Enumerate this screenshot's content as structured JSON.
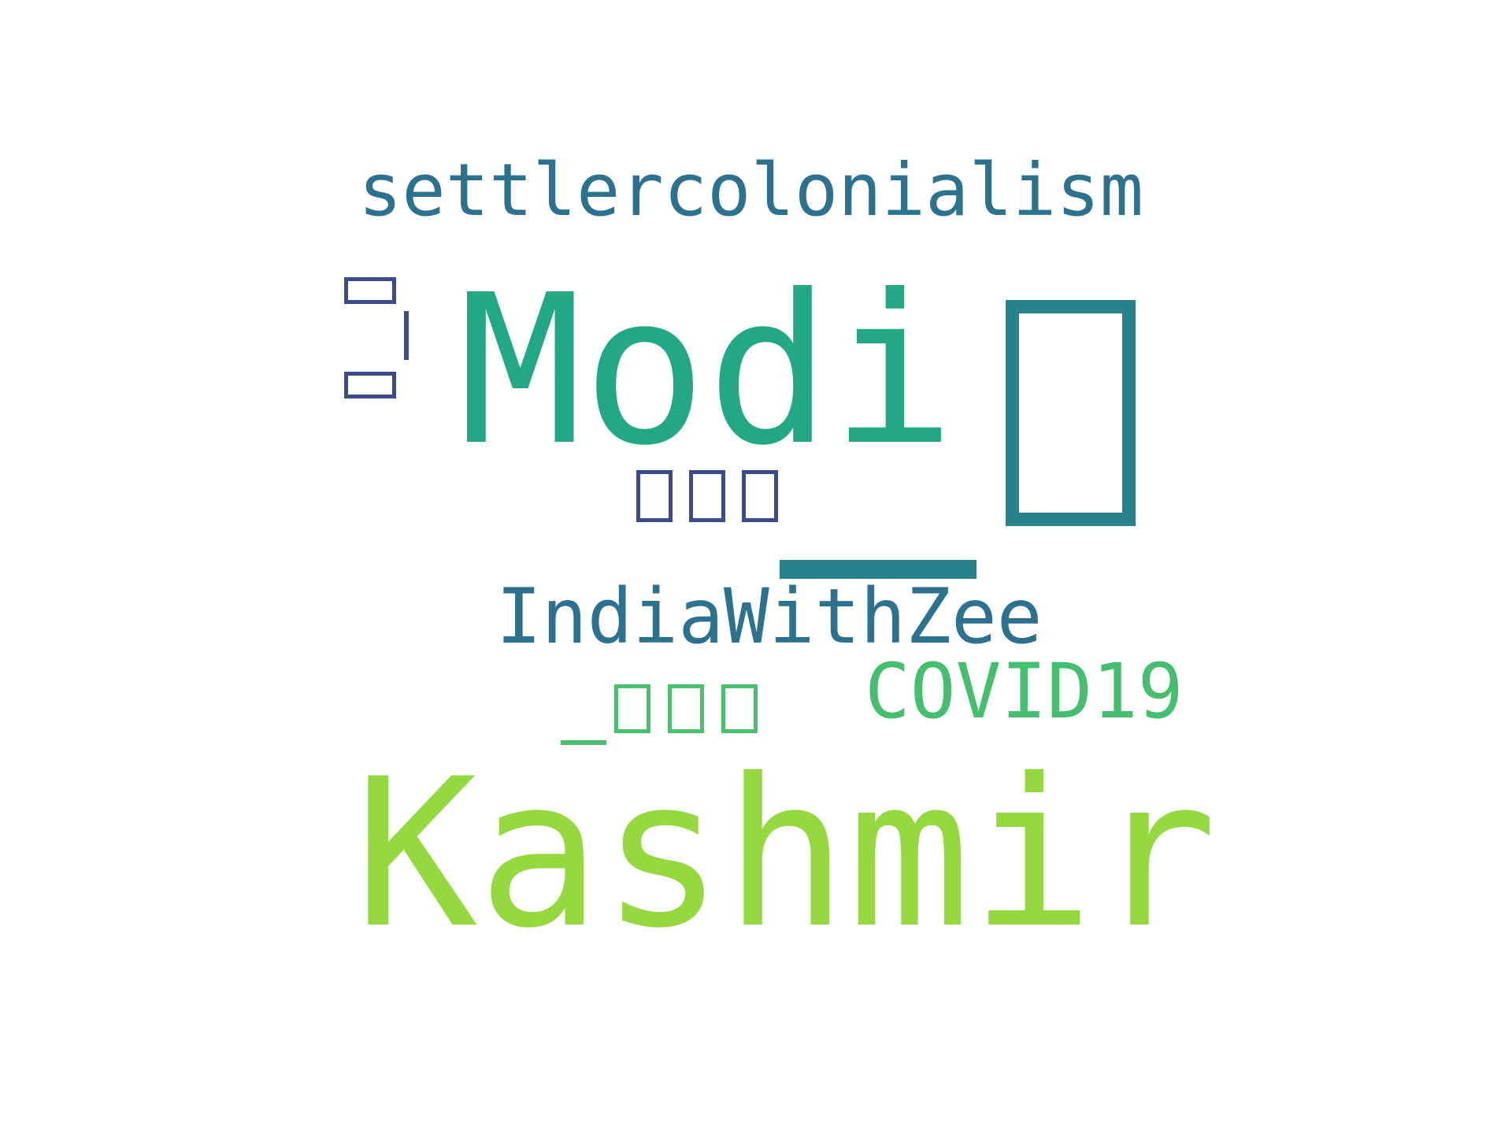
{
  "words": {
    "settlercolonialism": {
      "text": "settlercolonialism",
      "color": "#2c728e"
    },
    "modi": {
      "text": "Modi",
      "color": "#22a884"
    },
    "kashmir": {
      "text": "Kashmir",
      "color": "#95d840"
    },
    "indiawithzee": {
      "text": "IndiaWithZee",
      "color": "#2c728e"
    },
    "covid19": {
      "text": "COVID19",
      "color": "#44bf70"
    }
  },
  "glyph_colors": {
    "teal": "#26828e",
    "indigo": "#3e4a89",
    "green": "#4ac16d"
  }
}
